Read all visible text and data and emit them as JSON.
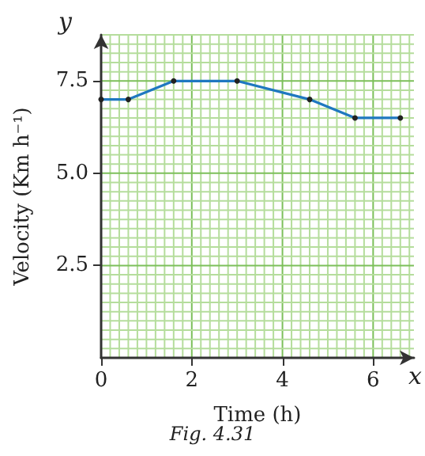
{
  "chart_data": {
    "type": "line",
    "xlabel": "Time (h)",
    "ylabel": "Velocity (Km h⁻¹)",
    "x": [
      0,
      0.6,
      1.6,
      3.0,
      4.6,
      5.6,
      6.6
    ],
    "series": [
      {
        "color": "#1f78c0",
        "values": [
          7.0,
          7.0,
          7.5,
          7.5,
          7.0,
          6.5,
          6.5
        ]
      }
    ],
    "xlim": [
      0,
      6.9
    ],
    "ylim": [
      0,
      8.75
    ],
    "xticks": [
      0,
      {
        "value": 0.2,
        "label": null
      },
      {
        "value": 0.4,
        "label": null
      },
      {
        "value": 0.6,
        "label": null
      },
      {
        "value": 0.8,
        "label": null
      },
      {
        "value": 1,
        "label": null
      },
      {
        "value": 1.2,
        "label": null
      },
      {
        "value": 1.4,
        "label": null
      },
      {
        "value": 1.6,
        "label": null
      },
      {
        "value": 1.8,
        "label": null
      },
      2,
      {
        "value": 2.2,
        "label": null
      },
      {
        "value": 2.4,
        "label": null
      },
      {
        "value": 2.6,
        "label": null
      },
      {
        "value": 2.8,
        "label": null
      },
      {
        "value": 3,
        "label": null
      },
      {
        "value": 3.2,
        "label": null
      },
      {
        "value": 3.4,
        "label": null
      },
      {
        "value": 3.6,
        "label": null
      },
      {
        "value": 3.8,
        "label": null
      },
      4,
      {
        "value": 4.2,
        "label": null
      },
      {
        "value": 4.4,
        "label": null
      },
      {
        "value": 4.6,
        "label": null
      },
      {
        "value": 4.8,
        "label": null
      },
      {
        "value": 5,
        "label": null
      },
      {
        "value": 5.2,
        "label": null
      },
      {
        "value": 5.4,
        "label": null
      },
      {
        "value": 5.6,
        "label": null
      },
      {
        "value": 5.8,
        "label": null
      },
      6,
      {
        "value": 6.2,
        "label": null
      },
      {
        "value": 6.4,
        "label": null
      },
      {
        "value": 6.6,
        "label": null
      },
      {
        "value": 6.8,
        "label": null
      }
    ],
    "yticks": [
      {
        "value": 0,
        "label": null
      },
      {
        "value": 0.25,
        "label": null
      },
      {
        "value": 0.5,
        "label": null
      },
      {
        "value": 0.75,
        "label": null
      },
      {
        "value": 1,
        "label": null
      },
      {
        "value": 1.25,
        "label": null
      },
      {
        "value": 1.5,
        "label": null
      },
      {
        "value": 1.75,
        "label": null
      },
      {
        "value": 2,
        "label": null
      },
      {
        "value": 2.25,
        "label": null
      },
      {
        "value": 2.5,
        "label": "2.5"
      },
      {
        "value": 2.75,
        "label": null
      },
      {
        "value": 3,
        "label": null
      },
      {
        "value": 3.25,
        "label": null
      },
      {
        "value": 3.5,
        "label": null
      },
      {
        "value": 3.75,
        "label": null
      },
      {
        "value": 4,
        "label": null
      },
      {
        "value": 4.25,
        "label": null
      },
      {
        "value": 4.5,
        "label": null
      },
      {
        "value": 4.75,
        "label": null
      },
      {
        "value": 5,
        "label": "5.0"
      },
      {
        "value": 5.25,
        "label": null
      },
      {
        "value": 5.5,
        "label": null
      },
      {
        "value": 5.75,
        "label": null
      },
      {
        "value": 6,
        "label": null
      },
      {
        "value": 6.25,
        "label": null
      },
      {
        "value": 6.5,
        "label": null
      },
      {
        "value": 6.75,
        "label": null
      },
      {
        "value": 7,
        "label": null
      },
      {
        "value": 7.25,
        "label": null
      },
      {
        "value": 7.5,
        "label": "7.5"
      },
      {
        "value": 7.75,
        "label": null
      },
      {
        "value": 8,
        "label": null
      },
      {
        "value": 8.25,
        "label": null
      },
      {
        "value": 8.5,
        "label": null
      },
      {
        "value": 8.75,
        "label": null
      }
    ],
    "grid": true,
    "marker": "circle",
    "line_style": "solid",
    "annotations": [
      "x",
      "y",
      "Fig. 4.31"
    ]
  }
}
